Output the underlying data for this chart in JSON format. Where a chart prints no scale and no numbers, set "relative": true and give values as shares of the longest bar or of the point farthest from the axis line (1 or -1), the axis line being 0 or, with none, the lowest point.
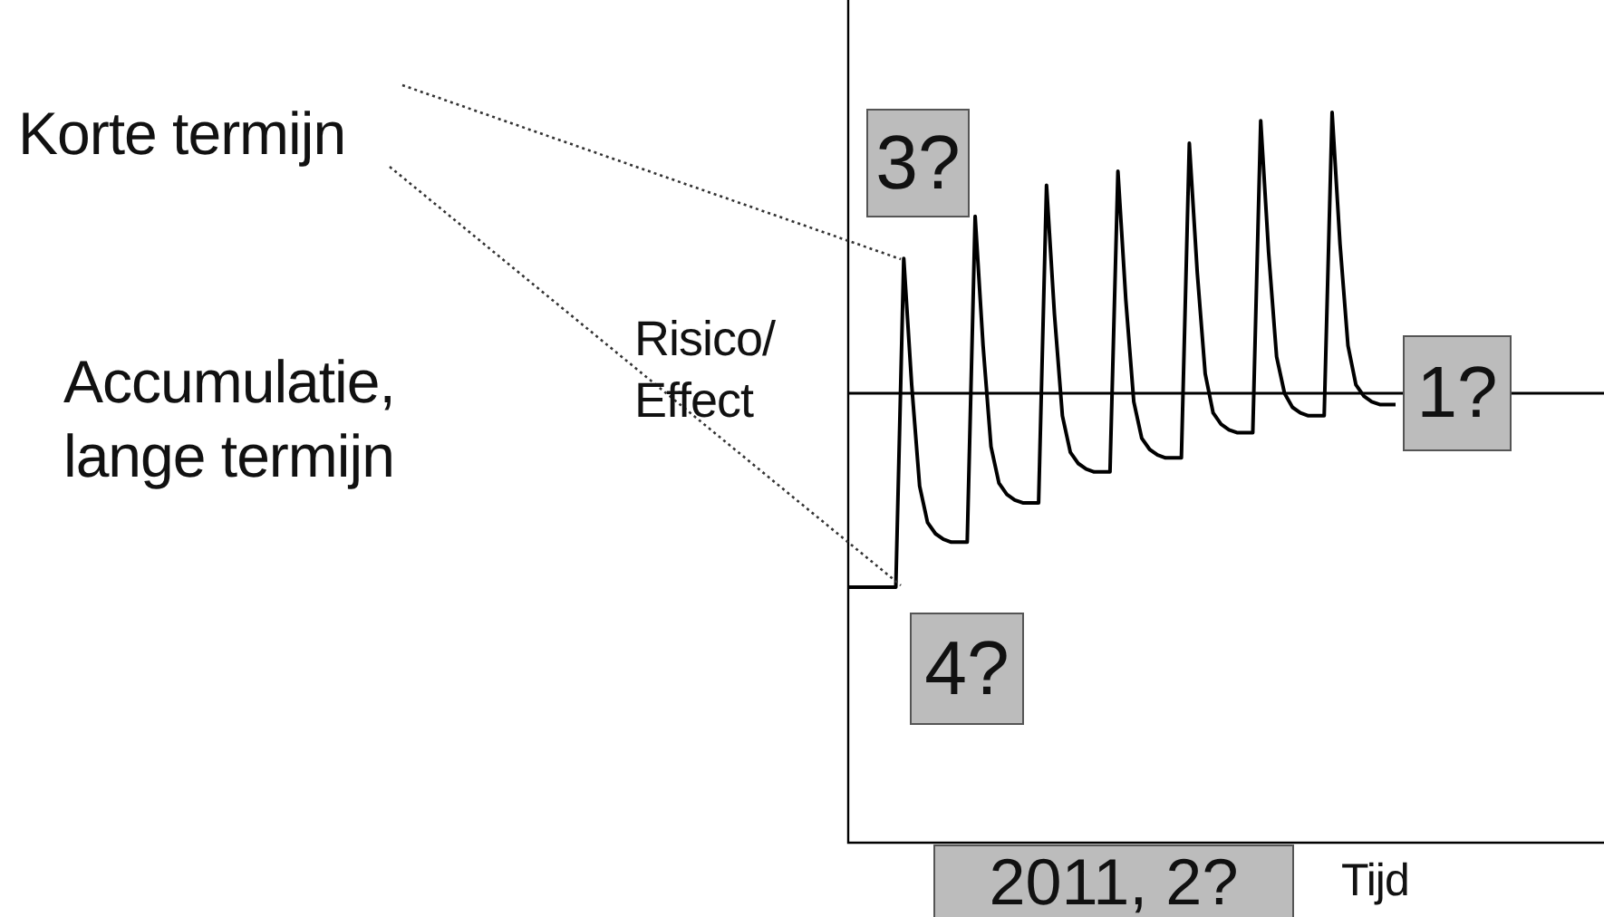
{
  "chart_data": {
    "type": "line",
    "relative": true,
    "color": "#000000",
    "ylabel": "Risico/ Effect",
    "marker": "none",
    "legend": false,
    "categories": [
      null,
      null,
      null,
      null,
      null,
      null,
      null,
      null,
      null,
      null,
      null,
      null,
      null,
      null,
      null,
      null,
      null,
      null,
      null,
      null,
      null,
      null,
      null,
      null,
      null,
      null,
      null,
      null,
      null,
      null,
      null,
      null,
      null,
      null,
      null,
      null,
      null,
      null,
      null,
      null,
      null,
      null,
      null,
      null,
      null,
      null,
      null,
      null,
      null,
      null,
      null,
      null,
      null,
      null,
      null,
      null,
      null,
      null,
      null,
      null,
      null,
      null,
      null,
      null,
      null,
      null,
      null,
      null,
      null,
      null
    ],
    "values": [
      -0.69,
      -0.69,
      -0.69,
      -0.69,
      -0.69,
      -0.69,
      -0.69,
      0.48,
      0.03,
      -0.33,
      -0.46,
      -0.5,
      -0.52,
      -0.53,
      -0.53,
      -0.53,
      0.63,
      0.17,
      -0.19,
      -0.32,
      -0.36,
      -0.38,
      -0.39,
      -0.39,
      -0.39,
      0.74,
      0.28,
      -0.08,
      -0.21,
      -0.25,
      -0.27,
      -0.28,
      -0.28,
      -0.28,
      0.79,
      0.33,
      -0.03,
      -0.16,
      -0.2,
      -0.22,
      -0.23,
      -0.23,
      -0.23,
      0.89,
      0.43,
      0.07,
      -0.07,
      -0.11,
      -0.13,
      -0.14,
      -0.14,
      -0.14,
      0.97,
      0.5,
      0.13,
      0,
      -0.05,
      -0.07,
      -0.08,
      -0.08,
      -0.08,
      1,
      0.53,
      0.17,
      0.03,
      -0.01,
      -0.03,
      -0.04,
      -0.04,
      -0.04
    ],
    "annotations": [
      "Korte termijn",
      "Accumulatie, lange termijn",
      "3?",
      "4?",
      "2011, 2?",
      "1?",
      "Tijd"
    ]
  }
}
